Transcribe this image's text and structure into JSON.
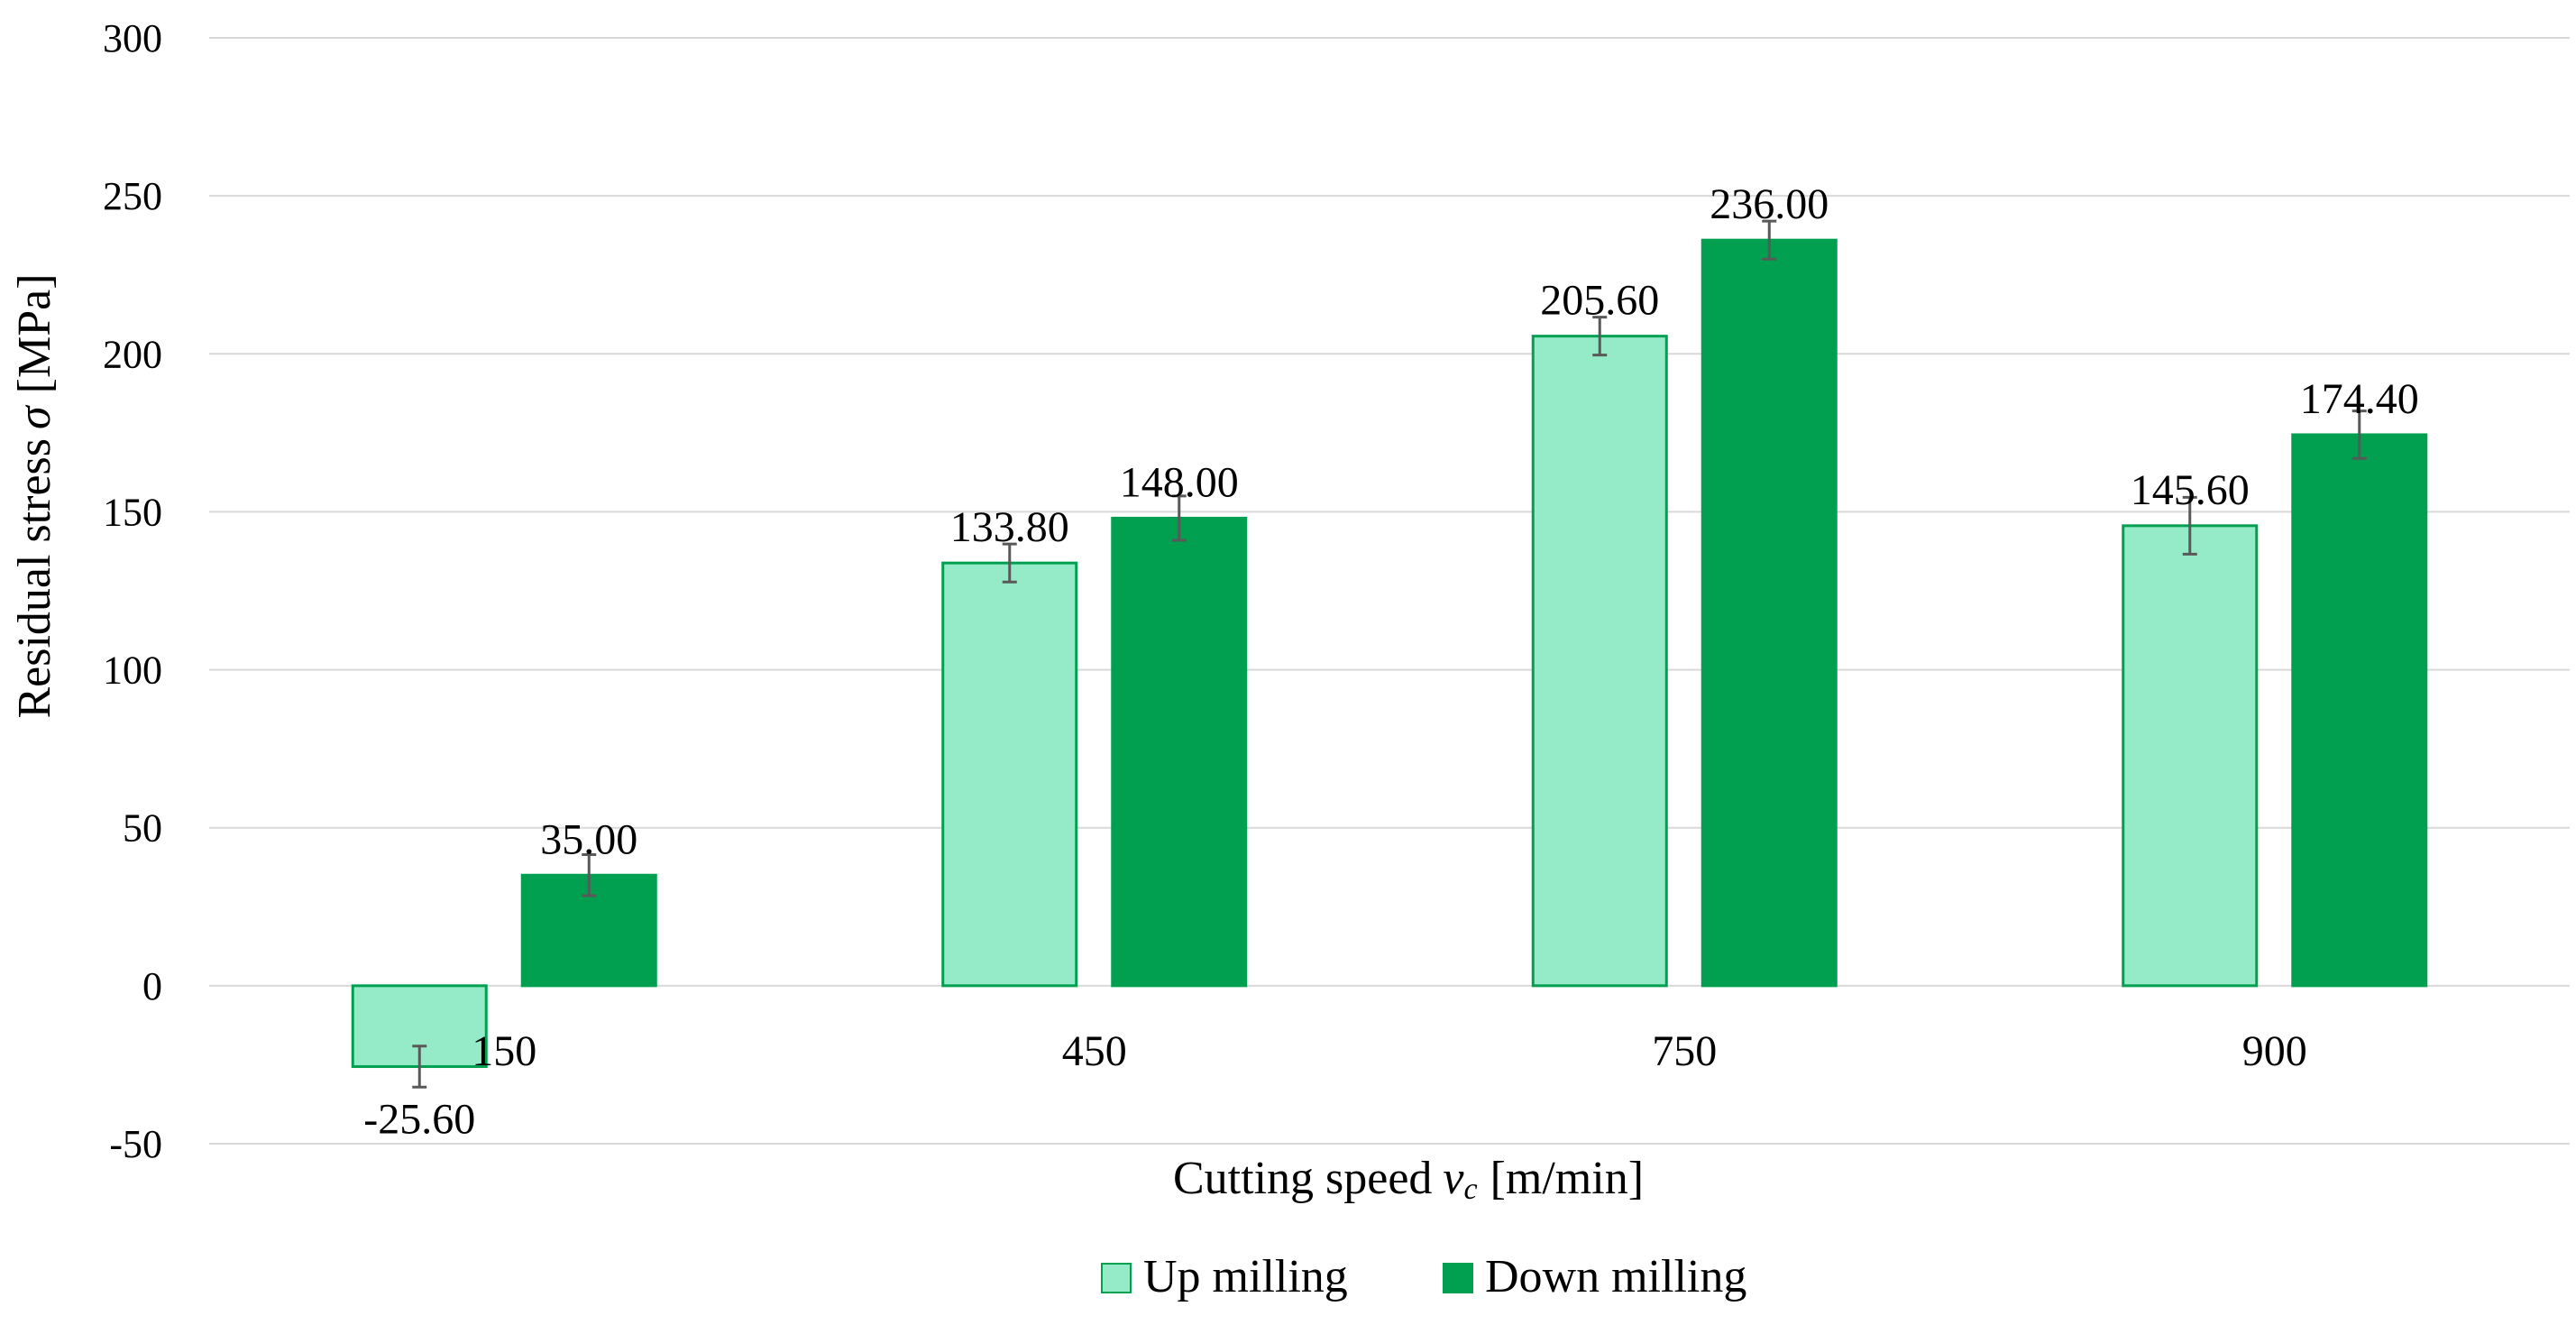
{
  "chart_data": {
    "type": "bar",
    "title": "",
    "xlabel": "Cutting speed",
    "xlabel_var": "v",
    "xlabel_sub": "c",
    "xlabel_unit": "[m/min]",
    "ylabel": "Residual stress",
    "ylabel_var": "σ",
    "ylabel_unit": "[MPa]",
    "ylim": [
      -50,
      300
    ],
    "yticks": [
      -50,
      0,
      50,
      100,
      150,
      200,
      250,
      300
    ],
    "categories": [
      "150",
      "450",
      "750",
      "900"
    ],
    "series": [
      {
        "name": "Up milling",
        "values": [
          -25.6,
          133.8,
          205.6,
          145.6
        ],
        "labels": [
          "-25.60",
          "133.80",
          "205.60",
          "145.60"
        ],
        "errors": [
          6.5,
          6,
          6,
          9
        ],
        "color": "#95EAC8",
        "edge": "#00A050"
      },
      {
        "name": "Down milling",
        "values": [
          35.0,
          148.0,
          236.0,
          174.4
        ],
        "labels": [
          "35.00",
          "148.00",
          "236.00",
          "174.40"
        ],
        "errors": [
          6.5,
          7,
          6,
          7.5
        ],
        "color": "#00A050",
        "edge": "#00A050"
      }
    ],
    "grid": true,
    "legend": "bottom-center"
  }
}
